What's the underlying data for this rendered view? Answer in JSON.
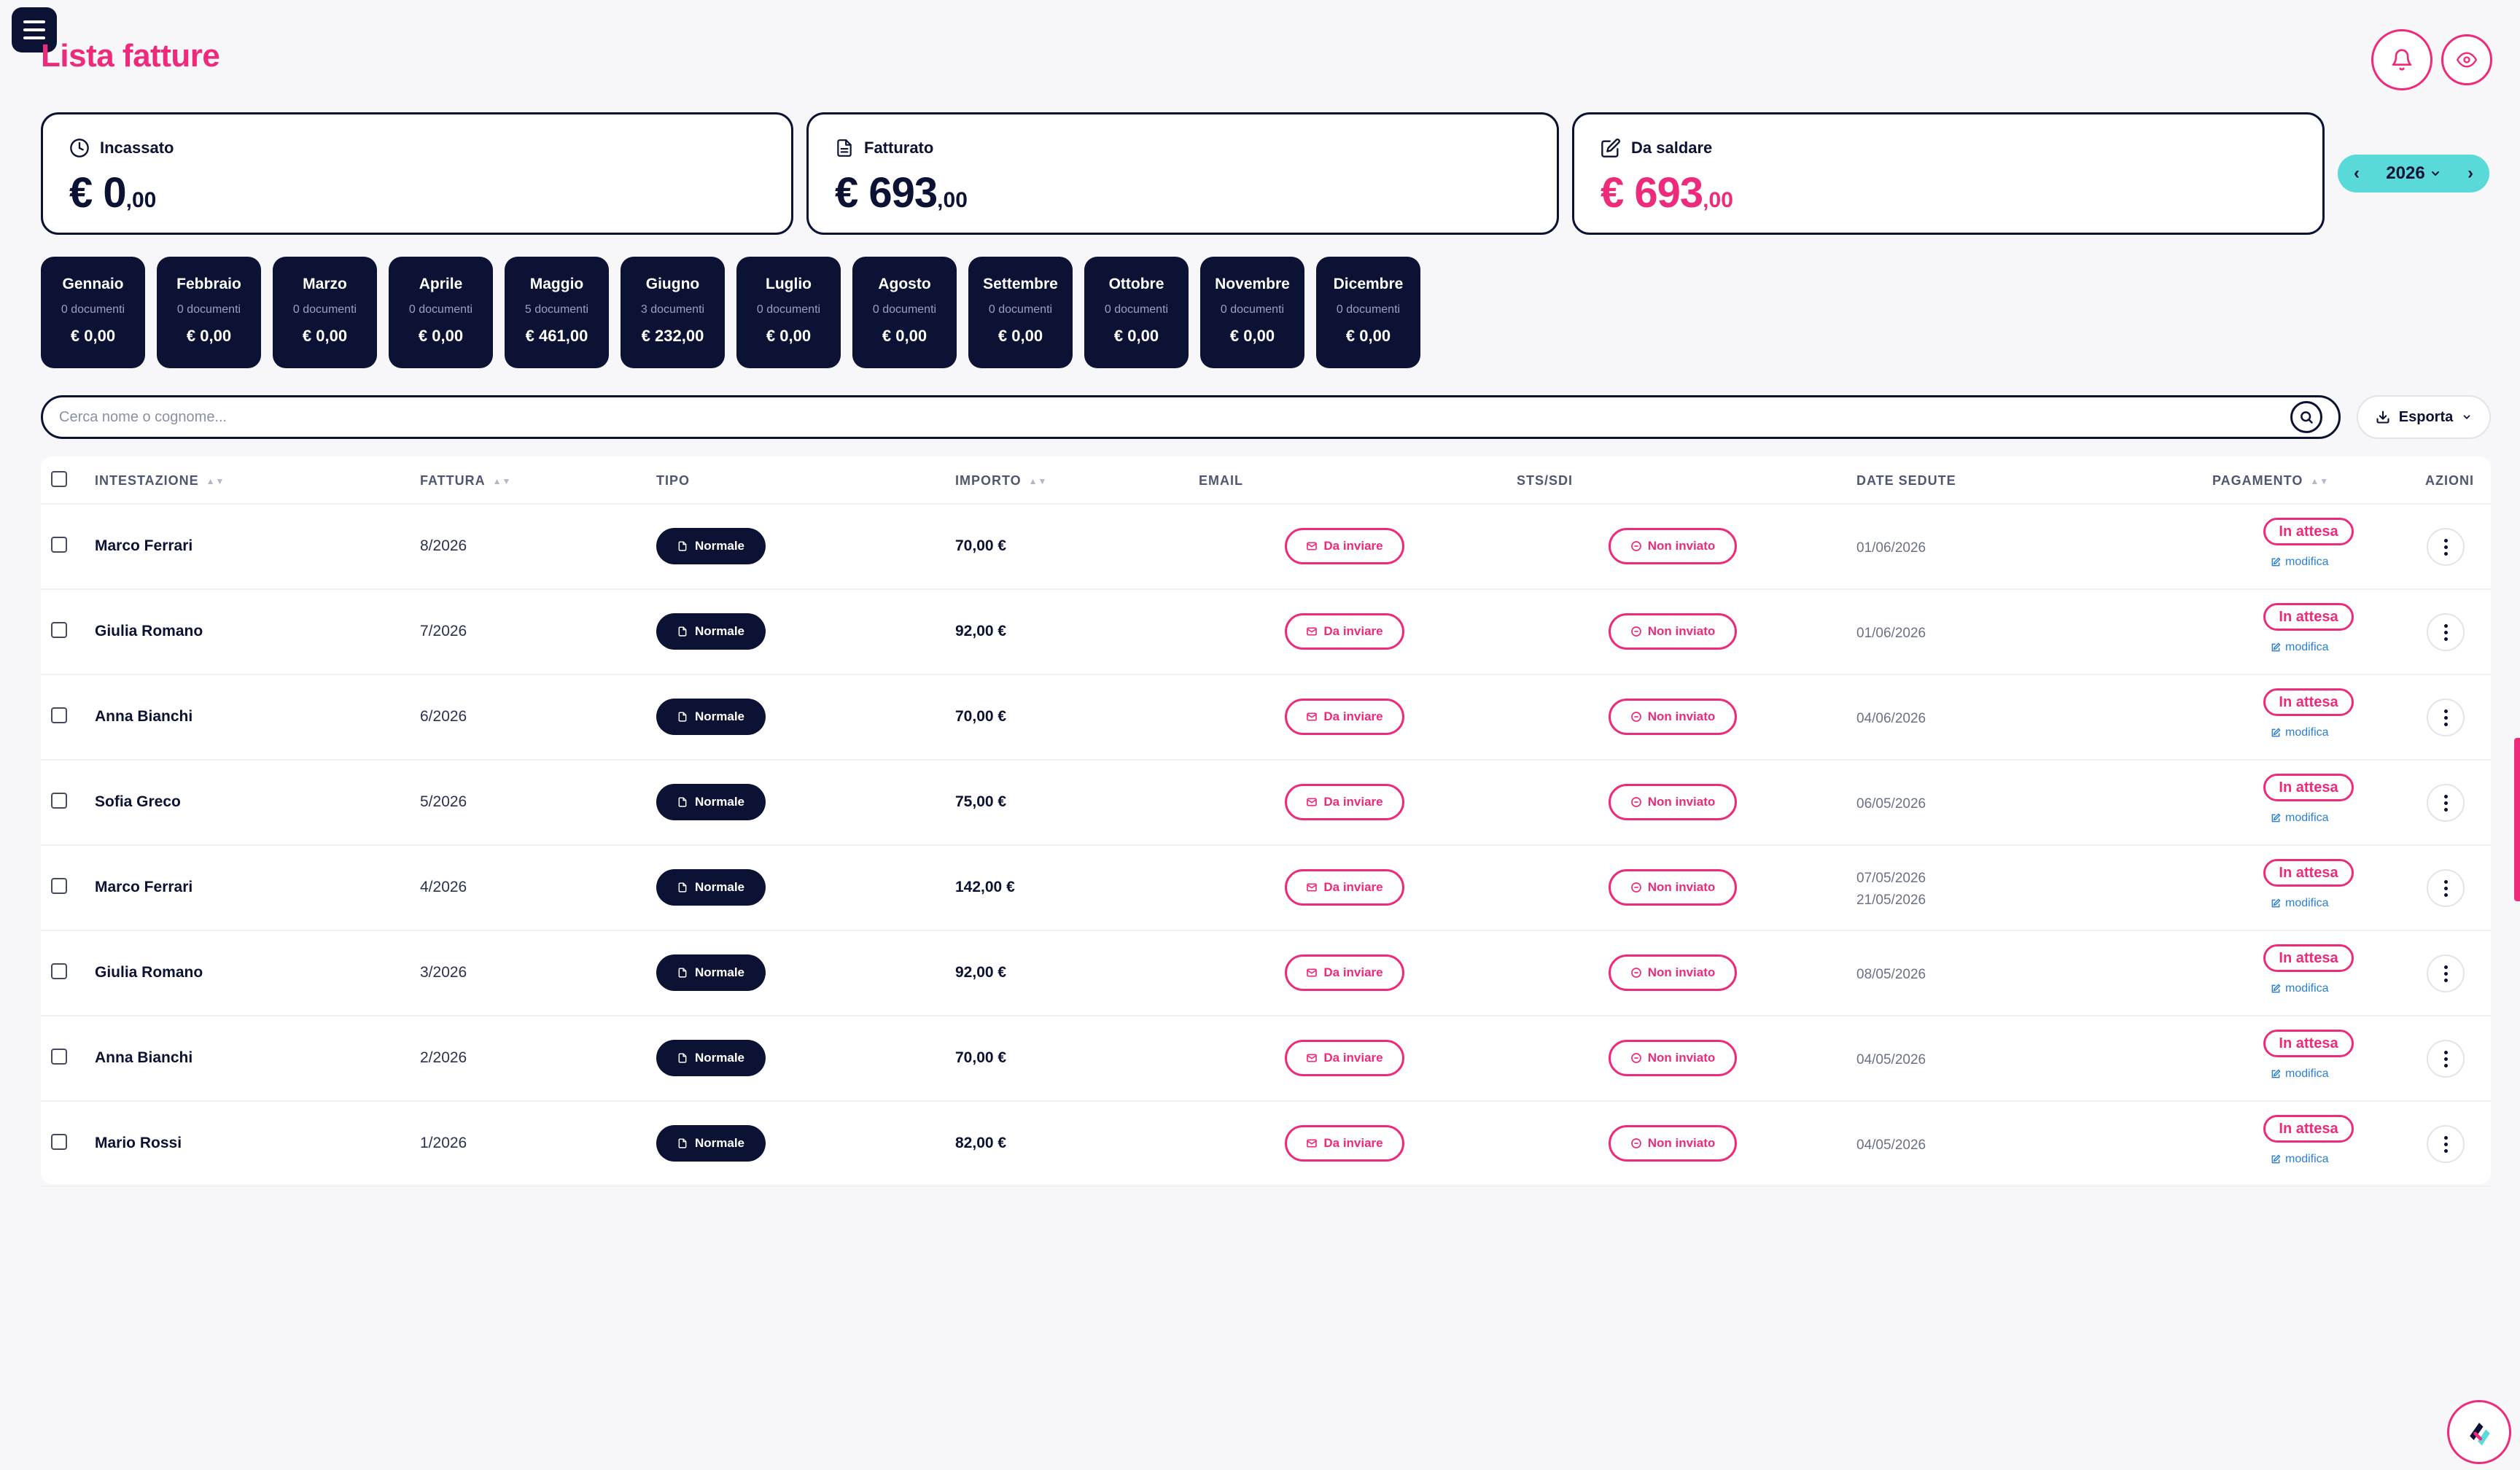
{
  "page": {
    "title": "Lista fatture"
  },
  "summary": {
    "incassato": {
      "label": "Incassato",
      "currency": "€",
      "int": "0",
      "cents": ",00"
    },
    "fatturato": {
      "label": "Fatturato",
      "currency": "€",
      "int": "693",
      "cents": ",00"
    },
    "da_saldare": {
      "label": "Da saldare",
      "currency": "€",
      "int": "693",
      "cents": ",00"
    }
  },
  "year_selector": {
    "year": "2026",
    "prev": "‹",
    "next": "›"
  },
  "months": [
    {
      "name": "Gennaio",
      "docs": "0 documenti",
      "amount": "€ 0,00"
    },
    {
      "name": "Febbraio",
      "docs": "0 documenti",
      "amount": "€ 0,00"
    },
    {
      "name": "Marzo",
      "docs": "0 documenti",
      "amount": "€ 0,00"
    },
    {
      "name": "Aprile",
      "docs": "0 documenti",
      "amount": "€ 0,00"
    },
    {
      "name": "Maggio",
      "docs": "5 documenti",
      "amount": "€ 461,00"
    },
    {
      "name": "Giugno",
      "docs": "3 documenti",
      "amount": "€ 232,00"
    },
    {
      "name": "Luglio",
      "docs": "0 documenti",
      "amount": "€ 0,00"
    },
    {
      "name": "Agosto",
      "docs": "0 documenti",
      "amount": "€ 0,00"
    },
    {
      "name": "Settembre",
      "docs": "0 documenti",
      "amount": "€ 0,00"
    },
    {
      "name": "Ottobre",
      "docs": "0 documenti",
      "amount": "€ 0,00"
    },
    {
      "name": "Novembre",
      "docs": "0 documenti",
      "amount": "€ 0,00"
    },
    {
      "name": "Dicembre",
      "docs": "0 documenti",
      "amount": "€ 0,00"
    }
  ],
  "search": {
    "placeholder": "Cerca nome o cognome..."
  },
  "export": {
    "label": "Esporta"
  },
  "table": {
    "headers": {
      "intestazione": "INTESTAZIONE",
      "fattura": "FATTURA",
      "tipo": "TIPO",
      "importo": "IMPORTO",
      "email": "EMAIL",
      "sts": "STS/SDI",
      "date": "DATE SEDUTE",
      "pagamento": "PAGAMENTO",
      "azioni": "AZIONI"
    },
    "rows": [
      {
        "name": "Marco Ferrari",
        "invoice": "8/2026",
        "tipo": "Normale",
        "amount": "70,00 €",
        "email": "Da inviare",
        "sts": "Non inviato",
        "dates": [
          "01/06/2026"
        ],
        "payment": "In attesa",
        "edit": "modifica"
      },
      {
        "name": "Giulia Romano",
        "invoice": "7/2026",
        "tipo": "Normale",
        "amount": "92,00 €",
        "email": "Da inviare",
        "sts": "Non inviato",
        "dates": [
          "01/06/2026"
        ],
        "payment": "In attesa",
        "edit": "modifica"
      },
      {
        "name": "Anna Bianchi",
        "invoice": "6/2026",
        "tipo": "Normale",
        "amount": "70,00 €",
        "email": "Da inviare",
        "sts": "Non inviato",
        "dates": [
          "04/06/2026"
        ],
        "payment": "In attesa",
        "edit": "modifica"
      },
      {
        "name": "Sofia Greco",
        "invoice": "5/2026",
        "tipo": "Normale",
        "amount": "75,00 €",
        "email": "Da inviare",
        "sts": "Non inviato",
        "dates": [
          "06/05/2026"
        ],
        "payment": "In attesa",
        "edit": "modifica"
      },
      {
        "name": "Marco Ferrari",
        "invoice": "4/2026",
        "tipo": "Normale",
        "amount": "142,00 €",
        "email": "Da inviare",
        "sts": "Non inviato",
        "dates": [
          "07/05/2026",
          "21/05/2026"
        ],
        "payment": "In attesa",
        "edit": "modifica"
      },
      {
        "name": "Giulia Romano",
        "invoice": "3/2026",
        "tipo": "Normale",
        "amount": "92,00 €",
        "email": "Da inviare",
        "sts": "Non inviato",
        "dates": [
          "08/05/2026"
        ],
        "payment": "In attesa",
        "edit": "modifica"
      },
      {
        "name": "Anna Bianchi",
        "invoice": "2/2026",
        "tipo": "Normale",
        "amount": "70,00 €",
        "email": "Da inviare",
        "sts": "Non inviato",
        "dates": [
          "04/05/2026"
        ],
        "payment": "In attesa",
        "edit": "modifica"
      },
      {
        "name": "Mario Rossi",
        "invoice": "1/2026",
        "tipo": "Normale",
        "amount": "82,00 €",
        "email": "Da inviare",
        "sts": "Non inviato",
        "dates": [
          "04/05/2026"
        ],
        "payment": "In attesa",
        "edit": "modifica"
      }
    ]
  },
  "colors": {
    "navy": "#0c1233",
    "pink": "#ee2a7b",
    "teal": "#5ad9d9",
    "link": "#2a7fd6"
  }
}
